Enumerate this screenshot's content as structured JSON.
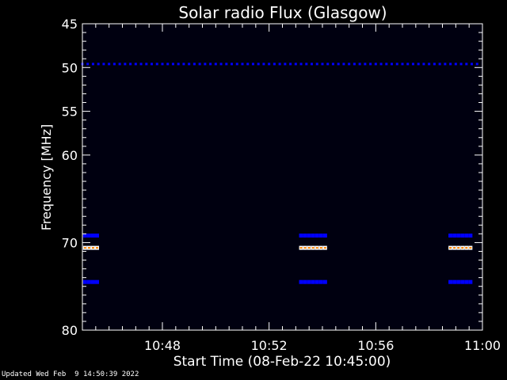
{
  "chart_data": {
    "type": "heatmap",
    "title": "Solar radio Flux (Glasgow)",
    "xlabel": "Start Time (08-Feb-22 10:45:00)",
    "ylabel": "Frequency [MHz]",
    "x_range_minutes": [
      45,
      60
    ],
    "xticks": [
      {
        "minute": 48,
        "label": "10:48"
      },
      {
        "minute": 52,
        "label": "10:52"
      },
      {
        "minute": 56,
        "label": "10:56"
      },
      {
        "minute": 60,
        "label": "11:00"
      }
    ],
    "y_range_mhz": [
      45,
      80
    ],
    "yticks": [
      {
        "mhz": 45,
        "label": "45"
      },
      {
        "mhz": 50,
        "label": "50"
      },
      {
        "mhz": 55,
        "label": "55"
      },
      {
        "mhz": 60,
        "label": "60"
      },
      {
        "mhz": 70,
        "label": "70"
      },
      {
        "mhz": 80,
        "label": "80"
      }
    ],
    "y_minor_ticks_mhz": [
      46,
      47,
      48,
      49,
      51,
      52,
      53,
      54,
      56,
      57,
      58,
      59,
      61,
      62,
      63,
      64,
      65,
      66,
      67,
      68,
      69,
      71,
      72,
      73,
      74,
      75,
      76,
      77,
      78,
      79
    ],
    "x_minor_tick_step_minutes": 0.5,
    "colormap": [
      "#000010",
      "#00006a",
      "#0000ff",
      "#ff0000",
      "#ff8000",
      "#ffffff"
    ],
    "background_color": "#000010",
    "features": [
      {
        "kind": "band",
        "mhz": 49.6,
        "minute_start": 45.0,
        "minute_end": 60.0,
        "level": 0.35
      },
      {
        "kind": "burst",
        "minute_start": 45.1,
        "minute_end": 45.6,
        "bands": [
          {
            "mhz": 69.2,
            "level": 0.45
          },
          {
            "mhz": 70.6,
            "level": 0.9
          },
          {
            "mhz": 74.5,
            "level": 0.45
          }
        ]
      },
      {
        "kind": "burst",
        "minute_start": 53.2,
        "minute_end": 54.2,
        "bands": [
          {
            "mhz": 69.2,
            "level": 0.45
          },
          {
            "mhz": 70.6,
            "level": 0.9
          },
          {
            "mhz": 74.5,
            "level": 0.45
          }
        ]
      },
      {
        "kind": "burst",
        "minute_start": 58.8,
        "minute_end": 59.6,
        "bands": [
          {
            "mhz": 69.2,
            "level": 0.45
          },
          {
            "mhz": 70.6,
            "level": 0.9
          },
          {
            "mhz": 74.5,
            "level": 0.45
          }
        ]
      }
    ]
  },
  "footer": "Updated Wed Feb  9 14:50:39 2022"
}
